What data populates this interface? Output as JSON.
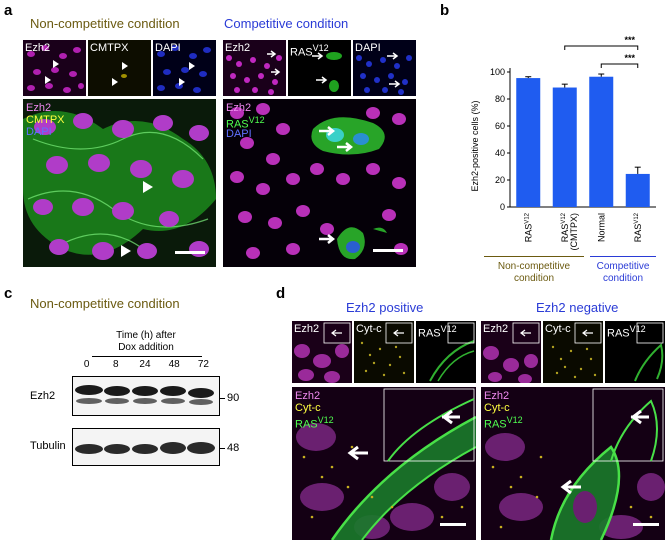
{
  "panels": {
    "a": {
      "letter": "a",
      "noncomp_title": "Non-competitive condition",
      "comp_title": "Competitive condition",
      "small_noncomp": [
        "Ezh2",
        "CMTPX",
        "DAPI"
      ],
      "small_comp": [
        "Ezh2",
        "RAS",
        "DAPI"
      ],
      "small_comp_sup": "V12",
      "merge_noncomp": [
        "Ezh2",
        "CMTPX",
        "DAPI"
      ],
      "merge_comp": [
        "Ezh2",
        "RAS",
        "DAPI"
      ],
      "merge_comp_sup": "V12"
    },
    "b": {
      "letter": "b",
      "group_noncomp": "Non-competitive\ncondition",
      "group_comp": "Competitive\ncondition"
    },
    "c": {
      "letter": "c",
      "title": "Non-competitive condition",
      "time_header": "Time (h) after\nDox addition",
      "time_points": [
        "0",
        "8",
        "24",
        "48",
        "72"
      ],
      "bands": [
        {
          "name": "Ezh2",
          "mw": "90"
        },
        {
          "name": "Tubulin",
          "mw": "48"
        }
      ]
    },
    "d": {
      "letter": "d",
      "pos_title": "Ezh2 positive",
      "neg_title": "Ezh2 negative",
      "small_labels": [
        "Ezh2",
        "Cyt-c",
        "RAS"
      ],
      "small_sup": "V12",
      "merge_labels": [
        "Ezh2",
        "Cyt-c",
        "RAS"
      ],
      "merge_sup": "V12"
    }
  },
  "chart_data": {
    "type": "bar",
    "ylabel": "Ezh2-positive cells (%)",
    "ylim": [
      0,
      100
    ],
    "yticks": [
      0,
      20,
      40,
      60,
      80,
      100
    ],
    "categories": [
      "RAS",
      "RAS",
      "Normal",
      "RAS"
    ],
    "category_sup": [
      "V12",
      "V12",
      "",
      "V12"
    ],
    "category_sub": [
      "",
      "(CMTPX)",
      "",
      ""
    ],
    "values": [
      95.5,
      88.5,
      96.5,
      24.5
    ],
    "errors": [
      1,
      2.5,
      2,
      5
    ],
    "bar_color": "#1f5cf0",
    "significance": [
      {
        "from": 1,
        "to": 3,
        "label": "***"
      },
      {
        "from": 2,
        "to": 3,
        "label": "***"
      }
    ]
  },
  "colors": {
    "olive": "#6b5a10",
    "blue": "#2a3bd6",
    "magenta": "#d63ad6",
    "green": "#30d030"
  }
}
